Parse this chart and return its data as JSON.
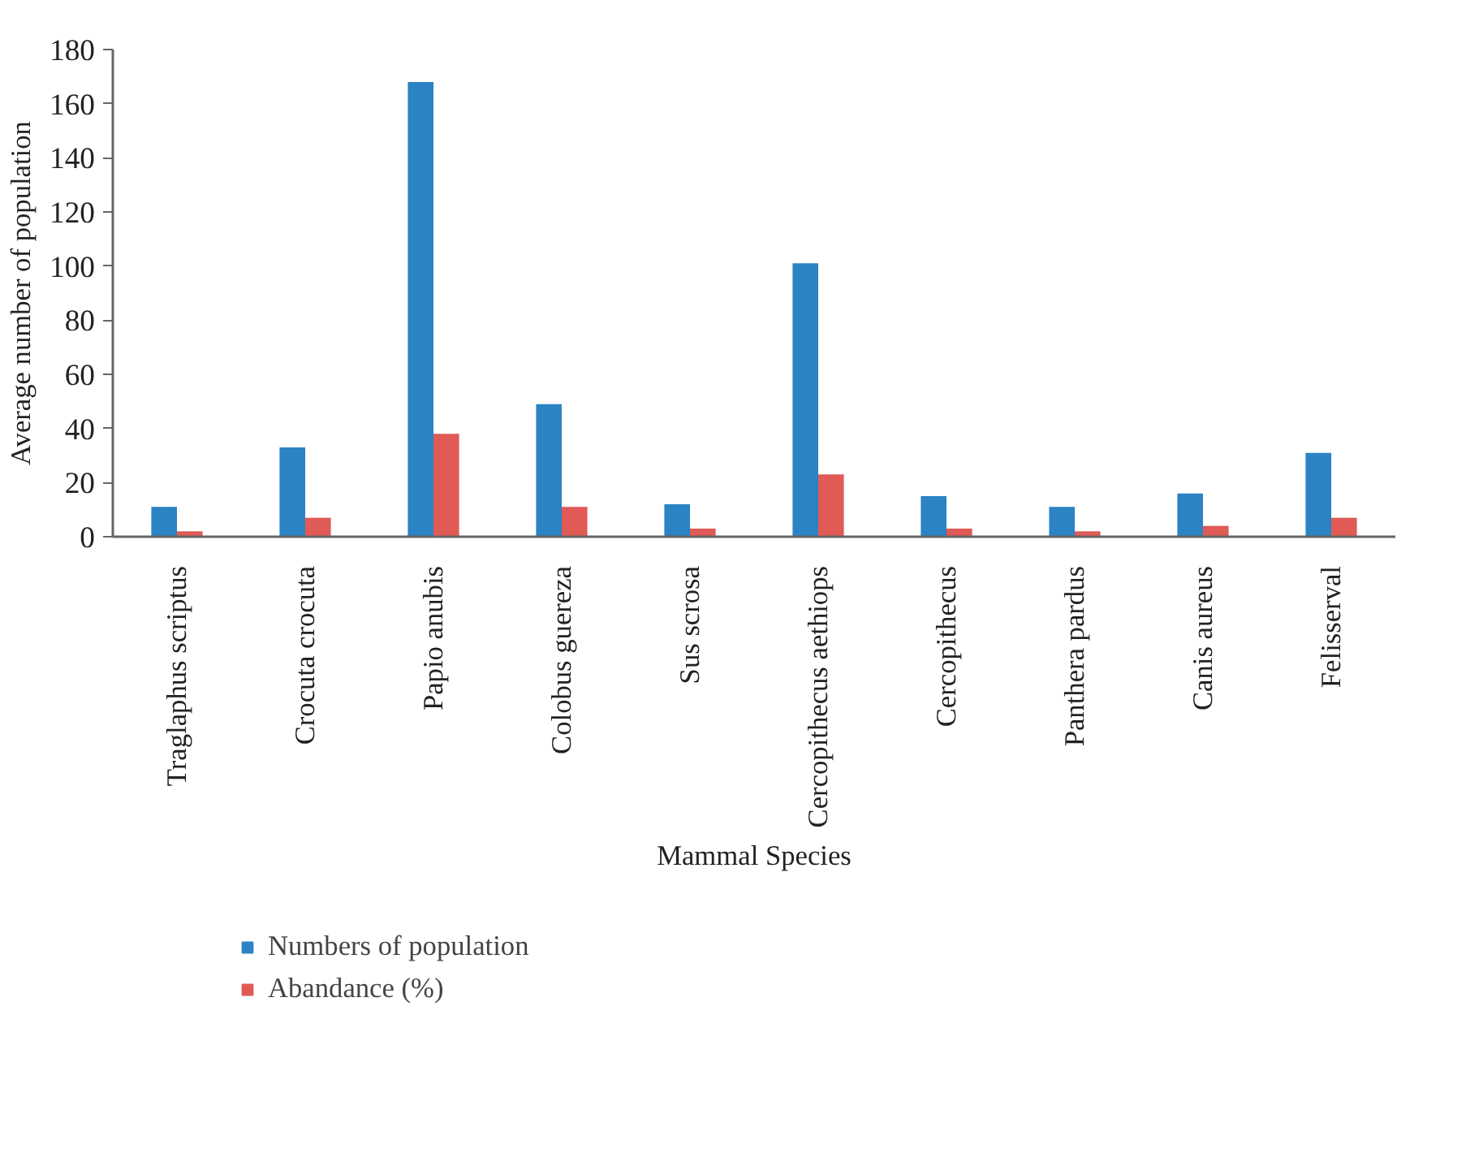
{
  "chart_data": {
    "type": "bar",
    "xlabel": "Mammal Species",
    "ylabel": "Average number of population",
    "categories": [
      "Traglaphus scriptus",
      "Crocuta crocuta",
      "Papio anubis",
      "Colobus guereza",
      "Sus scrosa",
      "Cercopithecus aethiops",
      "Cercopithecus",
      "Panthera pardus",
      "Canis aureus",
      "Felisserval"
    ],
    "series": [
      {
        "name": "Numbers of population",
        "color": "#2b83c3",
        "values": [
          11,
          33,
          168,
          49,
          12,
          101,
          15,
          11,
          16,
          31
        ]
      },
      {
        "name": "Abandance (%)",
        "color": "#e05a56",
        "values": [
          2,
          7,
          38,
          11,
          3,
          23,
          3,
          2,
          4,
          7
        ]
      }
    ],
    "ylim": [
      0,
      180
    ],
    "yticks": [
      0,
      20,
      40,
      60,
      80,
      100,
      120,
      140,
      160,
      180
    ],
    "grid": false,
    "legend": "bottom"
  }
}
